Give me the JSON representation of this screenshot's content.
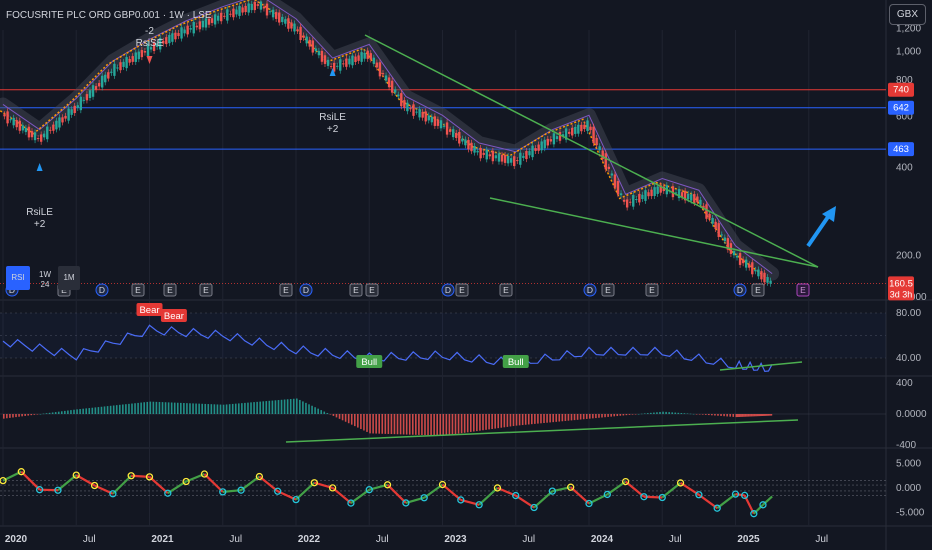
{
  "header": {
    "title": "FOCUSRITE PLC ORD GBP0.001 · 1W · LSE",
    "currency_button": "GBX"
  },
  "timeframe_buttons": [
    {
      "label": "RSI",
      "sub": "",
      "active": true
    },
    {
      "label": "1W",
      "sub": "24",
      "active": false
    },
    {
      "label": "1M",
      "sub": "",
      "active": false
    }
  ],
  "colors": {
    "background": "#131722",
    "up": "#26a69a",
    "down": "#ef5350",
    "rsi_line": "#4a6cf7",
    "trendline": "#4caf50",
    "resistance": "#e53935",
    "support": "#2962ff",
    "arrow": "#2196f3"
  },
  "chart_data": [
    {
      "type": "line",
      "title": "FOCUSRITE PLC ORD GBP0.001 · 1W · LSE",
      "pane": "price",
      "x_tick_labels": [
        "2020",
        "Jul",
        "2021",
        "Jul",
        "2022",
        "Jul",
        "2023",
        "Jul",
        "2024",
        "Jul",
        "2025",
        "Jul"
      ],
      "y_tick_labels": [
        "1,200",
        "1,000",
        "800",
        "600",
        "400",
        "200.0",
        "0.0000"
      ],
      "log_scale": true,
      "x": [
        "2020-01",
        "2020-04",
        "2020-07",
        "2020-10",
        "2021-01",
        "2021-04",
        "2021-07",
        "2021-10",
        "2022-01",
        "2022-04",
        "2022-07",
        "2022-10",
        "2023-01",
        "2023-04",
        "2023-07",
        "2023-10",
        "2024-01",
        "2024-04",
        "2024-07",
        "2024-10",
        "2025-01",
        "2025-04"
      ],
      "series": [
        {
          "values": [
            610,
            500,
            640,
            860,
            1020,
            1180,
            1320,
            1450,
            1200,
            880,
            980,
            650,
            560,
            450,
            420,
            500,
            560,
            300,
            340,
            310,
            200,
            160.5
          ]
        }
      ],
      "horizontal_levels": [
        {
          "value": 740,
          "label": "740",
          "color": "#e53935"
        },
        {
          "value": 642,
          "label": "642",
          "color": "#2962ff"
        },
        {
          "value": 463,
          "label": "463",
          "color": "#2962ff"
        },
        {
          "value": 160.5,
          "label": "160.5",
          "color": "#e53935",
          "countdown": "3d 3h"
        }
      ],
      "annotations": [
        {
          "text": "RsiLE",
          "sub": "+2",
          "date": "2020-04"
        },
        {
          "text": "-2",
          "sub": "RsiSE",
          "date": "2021-01"
        },
        {
          "text": "RsiLE",
          "sub": "+2",
          "date": "2022-04"
        }
      ],
      "event_markers": [
        "D",
        "E",
        "D",
        "E",
        "E",
        "E",
        "E",
        "D",
        "E",
        "E",
        "D",
        "E",
        "E",
        "D",
        "E",
        "E",
        "D",
        "E"
      ],
      "upcoming_event": "E"
    },
    {
      "type": "line",
      "pane": "rsi",
      "y_tick_labels": [
        "80.00",
        "40.00"
      ],
      "x": [
        "2020-01",
        "2020-07",
        "2021-01",
        "2021-07",
        "2022-01",
        "2022-07",
        "2023-01",
        "2023-07",
        "2024-01",
        "2024-07",
        "2025-01",
        "2025-04"
      ],
      "series": [
        {
          "values": [
            55,
            42,
            65,
            60,
            47,
            40,
            42,
            35,
            45,
            45,
            33,
            30
          ]
        }
      ],
      "labels": [
        {
          "text": "Bear",
          "date": "2021-01"
        },
        {
          "text": "Bear",
          "date": "2021-03"
        },
        {
          "text": "Bull",
          "date": "2022-07"
        },
        {
          "text": "Bull",
          "date": "2023-07"
        }
      ]
    },
    {
      "type": "bar",
      "pane": "macd_histogram",
      "y_tick_labels": [
        "400",
        "0.0000",
        "-400"
      ],
      "x": [
        "2020-01",
        "2020-07",
        "2021-01",
        "2021-07",
        "2022-01",
        "2022-07",
        "2023-01",
        "2023-07",
        "2024-01",
        "2024-07",
        "2025-01",
        "2025-04"
      ],
      "series": [
        {
          "values": [
            -60,
            60,
            160,
            120,
            200,
            -250,
            -280,
            -150,
            -60,
            30,
            -40,
            -20
          ]
        }
      ]
    },
    {
      "type": "line",
      "pane": "oscillator",
      "y_tick_labels": [
        "5.000",
        "0.000",
        "-5.000"
      ],
      "x": [
        "2020-01",
        "2020-07",
        "2021-01",
        "2021-07",
        "2022-01",
        "2022-07",
        "2023-01",
        "2023-07",
        "2024-01",
        "2024-07",
        "2025-01",
        "2025-04"
      ],
      "series": [
        {
          "values": [
            1.5,
            0.5,
            1.2,
            0.8,
            -0.5,
            -1.0,
            -1.5,
            -2.0,
            -1.2,
            -0.5,
            -2.5,
            -3.8
          ]
        }
      ]
    }
  ]
}
